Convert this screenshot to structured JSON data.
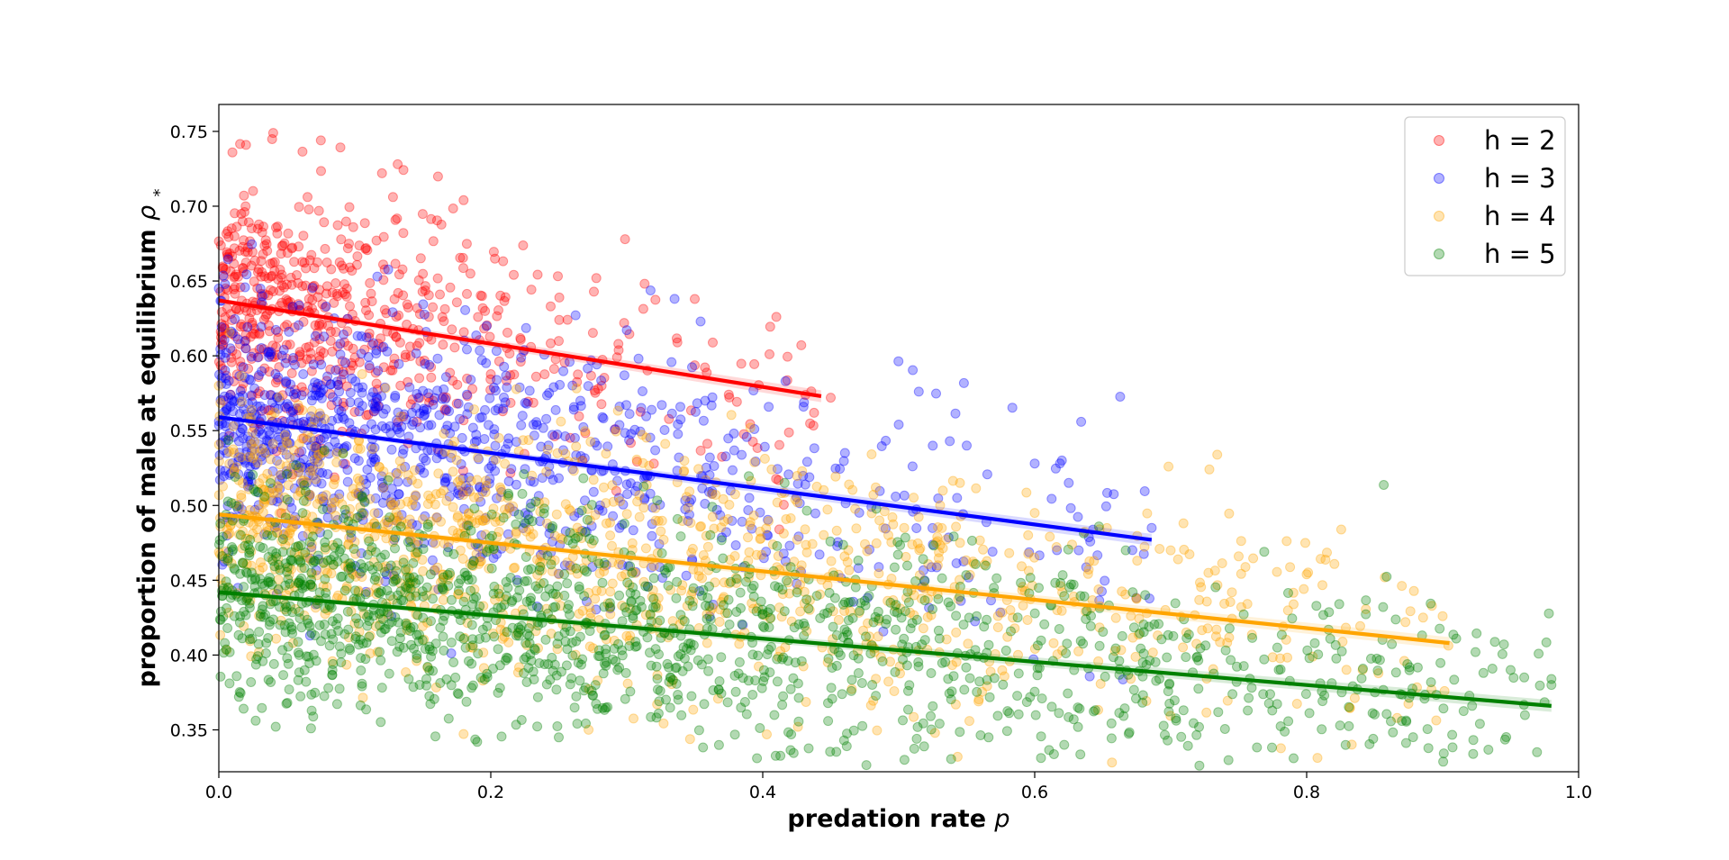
{
  "chart_data": {
    "type": "scatter",
    "title": "",
    "xlabel": "predation rate",
    "xlabel_symbol": "p",
    "ylabel": "proportion of male at equilibrium",
    "ylabel_symbol": "ρ",
    "ylabel_subscript": "*",
    "xlim": [
      0.0,
      1.0
    ],
    "ylim": [
      0.322,
      0.768
    ],
    "x_ticks": [
      0.0,
      0.2,
      0.4,
      0.6,
      0.8,
      1.0
    ],
    "x_tick_labels": [
      "0.0",
      "0.2",
      "0.4",
      "0.6",
      "0.8",
      "1.0"
    ],
    "y_ticks": [
      0.35,
      0.4,
      0.45,
      0.5,
      0.55,
      0.6,
      0.65,
      0.7,
      0.75
    ],
    "y_tick_labels": [
      "0.35",
      "0.40",
      "0.45",
      "0.50",
      "0.55",
      "0.60",
      "0.65",
      "0.70",
      "0.75"
    ],
    "grid": false,
    "legend_position": "top-right",
    "series": [
      {
        "name": "h = 2",
        "color": "#ff0000",
        "fit": {
          "x": [
            0.0,
            0.443
          ],
          "y": [
            0.637,
            0.573
          ]
        },
        "cloud": {
          "x_max": 0.443,
          "spread": 0.042,
          "count": 650,
          "density_decay": 3.5
        },
        "points": [
          [
            0.04,
            0.749
          ],
          [
            0.02,
            0.741
          ],
          [
            0.075,
            0.744
          ],
          [
            0.01,
            0.736
          ],
          [
            0.12,
            0.722
          ],
          [
            0.18,
            0.704
          ],
          [
            0.35,
            0.638
          ],
          [
            0.41,
            0.626
          ],
          [
            0.45,
            0.572
          ]
        ]
      },
      {
        "name": "h = 3",
        "color": "#0000ff",
        "fit": {
          "x": [
            0.0,
            0.686
          ],
          "y": [
            0.559,
            0.477
          ]
        },
        "cloud": {
          "x_max": 0.686,
          "spread": 0.042,
          "count": 1000,
          "density_decay": 3.0
        },
        "points": [
          [
            0.0,
            0.645
          ],
          [
            0.43,
            0.566
          ],
          [
            0.5,
            0.554
          ],
          [
            0.55,
            0.54
          ],
          [
            0.6,
            0.528
          ],
          [
            0.62,
            0.53
          ],
          [
            0.625,
            0.515
          ],
          [
            0.686,
            0.485
          ]
        ]
      },
      {
        "name": "h = 4",
        "color": "#ffa500",
        "fit": {
          "x": [
            0.0,
            0.905
          ],
          "y": [
            0.494,
            0.408
          ]
        },
        "cloud": {
          "x_max": 0.905,
          "spread": 0.04,
          "count": 1200,
          "density_decay": 2.4
        },
        "points": [
          [
            0.0,
            0.58
          ],
          [
            0.6,
            0.495
          ],
          [
            0.7,
            0.47
          ],
          [
            0.75,
            0.466
          ],
          [
            0.8,
            0.454
          ],
          [
            0.9,
            0.426
          ]
        ]
      },
      {
        "name": "h = 5",
        "color": "#008000",
        "fit": {
          "x": [
            0.0,
            0.98
          ],
          "y": [
            0.442,
            0.366
          ]
        },
        "cloud": {
          "x_max": 0.98,
          "spread": 0.037,
          "count": 1500,
          "density_decay": 1.8
        },
        "points": [
          [
            0.19,
            0.342
          ],
          [
            0.25,
            0.345
          ],
          [
            0.91,
            0.411
          ],
          [
            0.93,
            0.388
          ],
          [
            0.95,
            0.39
          ],
          [
            0.96,
            0.385
          ],
          [
            0.98,
            0.38
          ],
          [
            0.98,
            0.384
          ]
        ]
      }
    ]
  }
}
